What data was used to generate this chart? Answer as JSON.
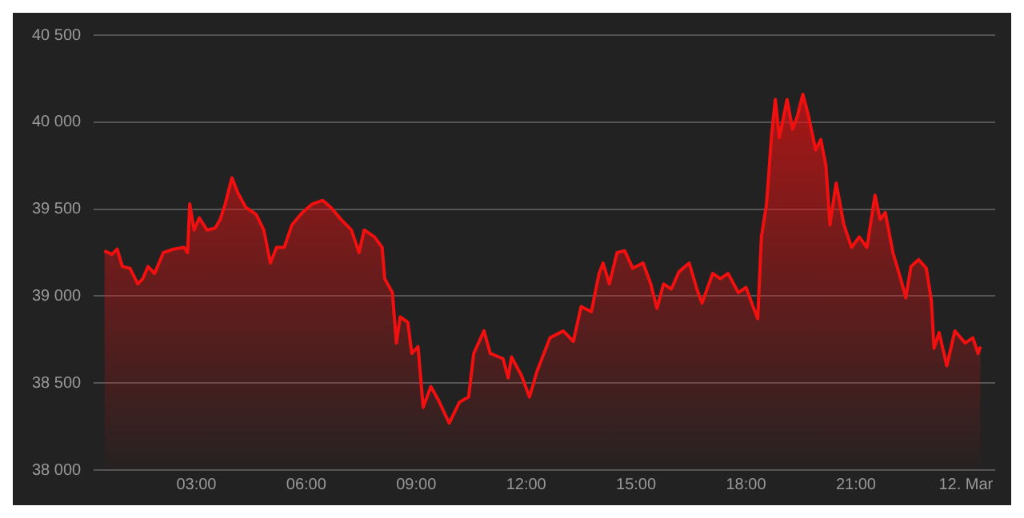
{
  "chart_data": {
    "type": "area",
    "xlim": [
      0.2,
      24.8
    ],
    "ylim": [
      38000,
      40500
    ],
    "xticks": [
      {
        "value": 3,
        "label": "03:00"
      },
      {
        "value": 6,
        "label": "06:00"
      },
      {
        "value": 9,
        "label": "09:00"
      },
      {
        "value": 12,
        "label": "12:00"
      },
      {
        "value": 15,
        "label": "15:00"
      },
      {
        "value": 18,
        "label": "18:00"
      },
      {
        "value": 21,
        "label": "21:00"
      },
      {
        "value": 24,
        "label": "12. Mar"
      }
    ],
    "yticks": [
      {
        "value": 38000,
        "label": "38 000"
      },
      {
        "value": 38500,
        "label": "38 500"
      },
      {
        "value": 39000,
        "label": "39 000"
      },
      {
        "value": 39500,
        "label": "39 500"
      },
      {
        "value": 40000,
        "label": "40 000"
      },
      {
        "value": 40500,
        "label": "40 500"
      }
    ],
    "grid": "y",
    "legend": false,
    "marker": "none",
    "line_style": "solid",
    "series": [
      {
        "color": "#f01010",
        "x": [
          0.49,
          0.7,
          0.84,
          0.98,
          1.19,
          1.4,
          1.54,
          1.68,
          1.86,
          2.1,
          2.38,
          2.66,
          2.76,
          2.82,
          2.94,
          3.08,
          3.29,
          3.51,
          3.65,
          3.79,
          3.97,
          4.14,
          4.35,
          4.63,
          4.84,
          5.02,
          5.19,
          5.4,
          5.61,
          5.89,
          6.17,
          6.45,
          6.67,
          6.95,
          7.23,
          7.44,
          7.58,
          7.86,
          8.07,
          8.14,
          8.35,
          8.46,
          8.56,
          8.77,
          8.88,
          9.05,
          9.19,
          9.4,
          9.61,
          9.9,
          10.18,
          10.43,
          10.57,
          10.85,
          11.02,
          11.37,
          11.51,
          11.6,
          11.88,
          12.09,
          12.3,
          12.65,
          13.01,
          13.29,
          13.5,
          13.78,
          13.99,
          14.1,
          14.27,
          14.48,
          14.69,
          14.91,
          15.19,
          15.4,
          15.57,
          15.75,
          15.96,
          16.17,
          16.45,
          16.66,
          16.8,
          17.09,
          17.3,
          17.51,
          17.79,
          18.0,
          18.21,
          18.32,
          18.42,
          18.56,
          18.7,
          18.8,
          18.91,
          19.12,
          19.27,
          19.41,
          19.55,
          19.69,
          19.9,
          20.04,
          20.18,
          20.29,
          20.46,
          20.67,
          20.88,
          21.09,
          21.3,
          21.52,
          21.66,
          21.8,
          22.01,
          22.22,
          22.36,
          22.5,
          22.71,
          22.92,
          23.06,
          23.13,
          23.27,
          23.48,
          23.7,
          23.98,
          24.19,
          24.33,
          24.4
        ],
        "values": [
          39260,
          39240,
          39270,
          39170,
          39160,
          39070,
          39100,
          39170,
          39130,
          39250,
          39270,
          39280,
          39250,
          39530,
          39380,
          39450,
          39380,
          39390,
          39440,
          39530,
          39680,
          39590,
          39510,
          39470,
          39380,
          39190,
          39280,
          39280,
          39410,
          39480,
          39530,
          39550,
          39510,
          39440,
          39380,
          39250,
          39380,
          39340,
          39280,
          39100,
          39020,
          38730,
          38880,
          38850,
          38670,
          38710,
          38360,
          38480,
          38400,
          38270,
          38390,
          38420,
          38670,
          38800,
          38670,
          38640,
          38530,
          38650,
          38540,
          38420,
          38570,
          38760,
          38800,
          38740,
          38940,
          38910,
          39130,
          39190,
          39070,
          39250,
          39260,
          39160,
          39190,
          39070,
          38930,
          39070,
          39040,
          39140,
          39190,
          39040,
          38960,
          39130,
          39100,
          39130,
          39020,
          39050,
          38930,
          38870,
          39340,
          39530,
          39930,
          40130,
          39910,
          40130,
          39960,
          40040,
          40160,
          40050,
          39840,
          39900,
          39750,
          39410,
          39650,
          39410,
          39280,
          39340,
          39280,
          39580,
          39440,
          39480,
          39250,
          39100,
          38990,
          39170,
          39210,
          39160,
          38970,
          38700,
          38790,
          38600,
          38800,
          38730,
          38760,
          38670,
          38710
        ]
      }
    ]
  }
}
